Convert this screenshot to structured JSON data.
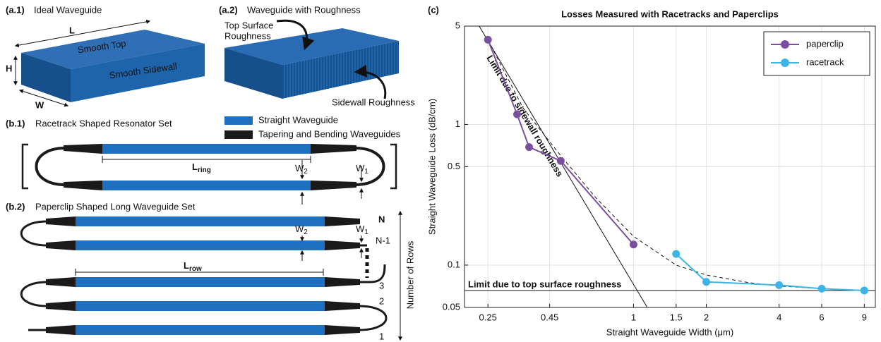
{
  "diagram": {
    "a1": {
      "tag": "(a.1)",
      "title": "Ideal Waveguide",
      "length": "L",
      "height": "H",
      "width": "W",
      "top": "Smooth Top",
      "side": "Smooth Sidewall"
    },
    "a2": {
      "tag": "(a.2)",
      "title": "Waveguide with Roughness",
      "top_label": [
        "Top Surface",
        "Roughness"
      ],
      "side_label": "Sidewall Roughness"
    },
    "b1": {
      "tag": "(b.1)",
      "title": "Racetrack Shaped Resonator Set",
      "length": {
        "symbol": "L",
        "sub": "ring"
      },
      "w2": {
        "symbol": "W",
        "sub": "2"
      },
      "w1": {
        "symbol": "W",
        "sub": "1"
      }
    },
    "legend": [
      "Straight Waveguide",
      "Tapering and Bending Waveguides"
    ],
    "b2": {
      "tag": "(b.2)",
      "title": "Paperclip Shaped Long Waveguide Set",
      "length": {
        "symbol": "L",
        "sub": "row"
      },
      "w2": {
        "symbol": "W",
        "sub": "2"
      },
      "w1": {
        "symbol": "W",
        "sub": "1"
      },
      "rows": [
        "N",
        "N-1",
        "3",
        "2",
        "1"
      ],
      "rows_label": "Number of Rows"
    },
    "c_tag": "(c)"
  },
  "chart_data": {
    "type": "line",
    "title": "Losses Measured with Racetracks and Paperclips",
    "x_label": "Straight Waveguide Width (μm)",
    "y_label": "Straight Waveguide Loss (dB/cm)",
    "xscale": "log",
    "yscale": "log",
    "grid": true,
    "legend": "upper right",
    "xlim": [
      0.2,
      10
    ],
    "xticks": [
      0.25,
      0.45,
      1,
      1.5,
      2,
      4,
      6,
      9
    ],
    "ylim": [
      0.05,
      5
    ],
    "yticks": [
      0.05,
      0.1,
      0.5,
      1,
      5
    ],
    "series": [
      {
        "name": "paperclip",
        "color": "#7b4fa0",
        "x": [
          0.25,
          0.33,
          0.37,
          0.5,
          1
        ],
        "values": [
          4.0,
          1.18,
          0.69,
          0.55,
          0.14
        ]
      },
      {
        "name": "racetrack",
        "color": "#3cb4e5",
        "x": [
          1.5,
          2,
          4,
          6,
          9
        ],
        "values": [
          0.12,
          0.076,
          0.072,
          0.068,
          0.066
        ]
      }
    ],
    "fit": {
      "style": "dashed",
      "x": [
        0.25,
        0.35,
        0.5,
        0.7,
        1,
        1.5,
        2,
        3,
        4,
        6,
        9
      ],
      "values": [
        4.0,
        1.3,
        0.6,
        0.3,
        0.16,
        0.1,
        0.085,
        0.075,
        0.071,
        0.068,
        0.066
      ]
    },
    "reference_lines": [
      {
        "label": "Limit due to sidewall roughness",
        "x": [
          0.23,
          1.14
        ],
        "values": [
          5,
          0.05
        ]
      },
      {
        "label": "Limit due to top surface roughness",
        "x": [
          0.2,
          10
        ],
        "values": [
          0.066,
          0.066
        ]
      }
    ]
  }
}
